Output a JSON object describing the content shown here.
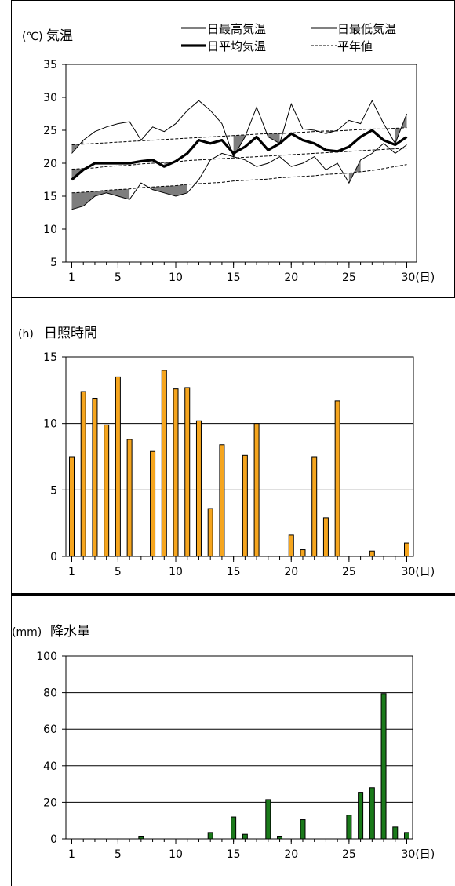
{
  "chart_data": [
    {
      "type": "line",
      "title": "気温",
      "unit": "(℃)",
      "x": [
        1,
        2,
        3,
        4,
        5,
        6,
        7,
        8,
        9,
        10,
        11,
        12,
        13,
        14,
        15,
        16,
        17,
        18,
        19,
        20,
        21,
        22,
        23,
        24,
        25,
        26,
        27,
        28,
        29,
        30
      ],
      "xticks": [
        1,
        5,
        10,
        15,
        20,
        25,
        30
      ],
      "xtick_labels": [
        "1",
        "5",
        "10",
        "15",
        "20",
        "25",
        "30(日)"
      ],
      "yticks": [
        5,
        10,
        15,
        20,
        25,
        30,
        35
      ],
      "ylim": [
        5,
        35
      ],
      "legend": [
        "日最高気温",
        "日最低気温",
        "日平均気温",
        "平年値"
      ],
      "series": [
        {
          "name": "日最高気温",
          "style": "thin",
          "values": [
            21.5,
            23.5,
            24.8,
            25.5,
            26.0,
            26.3,
            23.5,
            25.5,
            24.8,
            26.0,
            28.0,
            29.5,
            28.0,
            26.0,
            21.0,
            24.0,
            28.5,
            24.0,
            23.0,
            29.0,
            25.2,
            25.0,
            24.5,
            25.0,
            26.5,
            26.0,
            29.5,
            26.0,
            23.0,
            27.5
          ]
        },
        {
          "name": "日最低気温",
          "style": "thin",
          "values": [
            13.0,
            13.5,
            15.0,
            15.5,
            15.0,
            14.5,
            17.0,
            16.0,
            15.5,
            15.0,
            15.5,
            17.5,
            20.5,
            21.5,
            21.0,
            20.5,
            19.5,
            20.0,
            21.0,
            19.5,
            20.0,
            21.0,
            19.0,
            20.0,
            17.0,
            20.5,
            21.5,
            23.0,
            21.5,
            22.8
          ]
        },
        {
          "name": "日平均気温",
          "style": "bold",
          "values": [
            17.5,
            19.0,
            20.0,
            20.0,
            20.0,
            20.0,
            20.3,
            20.5,
            19.5,
            20.3,
            21.5,
            23.5,
            23.0,
            23.5,
            21.5,
            22.5,
            24.0,
            22.0,
            23.0,
            24.5,
            23.5,
            23.0,
            22.0,
            21.8,
            22.5,
            24.0,
            25.0,
            23.5,
            22.8,
            24.0
          ]
        },
        {
          "name": "平年値(最高)",
          "style": "dashed",
          "values": [
            22.8,
            22.9,
            23.0,
            23.1,
            23.2,
            23.3,
            23.4,
            23.5,
            23.6,
            23.7,
            23.8,
            23.9,
            24.0,
            24.1,
            24.2,
            24.3,
            24.4,
            24.5,
            24.5,
            24.6,
            24.7,
            24.8,
            24.9,
            24.9,
            25.0,
            25.1,
            25.2,
            25.2,
            25.3,
            25.4
          ]
        },
        {
          "name": "平年値(平均)",
          "style": "dashed",
          "values": [
            19.1,
            19.2,
            19.3,
            19.5,
            19.6,
            19.7,
            19.9,
            20.0,
            20.1,
            20.2,
            20.4,
            20.5,
            20.6,
            20.7,
            20.8,
            20.9,
            21.0,
            21.1,
            21.2,
            21.3,
            21.4,
            21.5,
            21.6,
            21.7,
            21.8,
            21.9,
            22.0,
            22.1,
            22.2,
            22.3
          ]
        },
        {
          "name": "平年値(最低)",
          "style": "dashed",
          "values": [
            15.5,
            15.6,
            15.7,
            15.9,
            16.0,
            16.1,
            16.3,
            16.4,
            16.5,
            16.6,
            16.8,
            16.9,
            17.0,
            17.1,
            17.3,
            17.4,
            17.5,
            17.6,
            17.8,
            17.9,
            18.0,
            18.1,
            18.3,
            18.4,
            18.5,
            18.7,
            18.9,
            19.2,
            19.5,
            19.8
          ]
        }
      ]
    },
    {
      "type": "bar",
      "title": "日照時間",
      "unit": "(h)",
      "categories": [
        1,
        2,
        3,
        4,
        5,
        6,
        7,
        8,
        9,
        10,
        11,
        12,
        13,
        14,
        15,
        16,
        17,
        18,
        19,
        20,
        21,
        22,
        23,
        24,
        25,
        26,
        27,
        28,
        29,
        30
      ],
      "values": [
        7.5,
        12.4,
        11.9,
        9.9,
        13.5,
        8.8,
        0,
        7.9,
        14.0,
        12.6,
        12.7,
        10.2,
        3.6,
        8.4,
        0,
        7.6,
        10.0,
        0,
        0,
        1.6,
        0.5,
        7.5,
        2.9,
        11.7,
        0,
        0,
        0.4,
        0,
        0,
        1.0
      ],
      "xticks": [
        1,
        5,
        10,
        15,
        20,
        25,
        30
      ],
      "xtick_labels": [
        "1",
        "5",
        "10",
        "15",
        "20",
        "25",
        "30(日)"
      ],
      "yticks": [
        0,
        5,
        10,
        15
      ],
      "ylim": [
        0,
        15
      ],
      "color": "#f5a51e"
    },
    {
      "type": "bar",
      "title": "降水量",
      "unit": "(mm)",
      "categories": [
        1,
        2,
        3,
        4,
        5,
        6,
        7,
        8,
        9,
        10,
        11,
        12,
        13,
        14,
        15,
        16,
        17,
        18,
        19,
        20,
        21,
        22,
        23,
        24,
        25,
        26,
        27,
        28,
        29,
        30
      ],
      "values": [
        0,
        0,
        0,
        0,
        0,
        0,
        1.5,
        0,
        0,
        0,
        0,
        0,
        3.5,
        0,
        12.0,
        2.5,
        0,
        21.5,
        1.5,
        0,
        10.5,
        0,
        0,
        0,
        13.0,
        25.5,
        28.0,
        79.5,
        6.5,
        3.5
      ],
      "xticks": [
        1,
        5,
        10,
        15,
        20,
        25,
        30
      ],
      "xtick_labels": [
        "1",
        "5",
        "10",
        "15",
        "20",
        "25",
        "30(日)"
      ],
      "yticks": [
        0,
        20,
        40,
        60,
        80,
        100
      ],
      "ylim": [
        0,
        100
      ],
      "color": "#1a7a1a"
    }
  ]
}
